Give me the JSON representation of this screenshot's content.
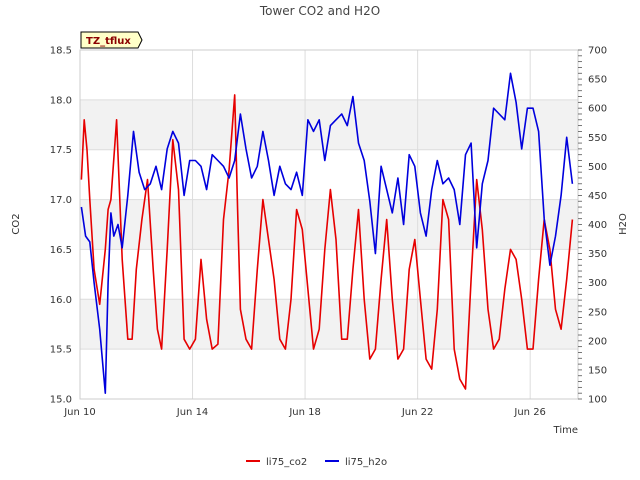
{
  "chart_data": {
    "type": "line",
    "title": "Tower CO2 and H2O",
    "badge": "TZ_tflux",
    "xlabel": "Time",
    "ylabel_left": "CO2",
    "ylabel_right": "H2O",
    "x_ticks": [
      "Jun 10",
      "Jun 14",
      "Jun 18",
      "Jun 22",
      "Jun 26"
    ],
    "x_tick_days": [
      10,
      14,
      18,
      22,
      26
    ],
    "xlim_days": [
      10,
      27.7
    ],
    "y_left_lim": [
      15.0,
      18.5
    ],
    "y_left_ticks": [
      "15.0",
      "15.5",
      "16.0",
      "16.5",
      "17.0",
      "17.5",
      "18.0",
      "18.5"
    ],
    "y_right_lim": [
      100,
      700
    ],
    "y_right_ticks": [
      "100",
      "150",
      "200",
      "250",
      "300",
      "350",
      "400",
      "450",
      "500",
      "550",
      "600",
      "650",
      "700"
    ],
    "grid": true,
    "legend_position": "bottom",
    "series": [
      {
        "name": "li75_co2",
        "axis": "left",
        "color": "#e60000",
        "x_days": [
          10.05,
          10.15,
          10.25,
          10.35,
          10.5,
          10.7,
          10.9,
          11.0,
          11.1,
          11.3,
          11.5,
          11.7,
          11.85,
          12.0,
          12.2,
          12.4,
          12.6,
          12.75,
          12.9,
          13.1,
          13.3,
          13.5,
          13.7,
          13.9,
          14.1,
          14.3,
          14.5,
          14.7,
          14.9,
          15.1,
          15.3,
          15.5,
          15.6,
          15.7,
          15.9,
          16.1,
          16.3,
          16.5,
          16.7,
          16.9,
          17.1,
          17.3,
          17.5,
          17.7,
          17.9,
          18.1,
          18.3,
          18.5,
          18.7,
          18.9,
          19.1,
          19.3,
          19.5,
          19.7,
          19.9,
          20.1,
          20.3,
          20.5,
          20.7,
          20.9,
          21.1,
          21.3,
          21.5,
          21.7,
          21.9,
          22.1,
          22.3,
          22.5,
          22.7,
          22.9,
          23.1,
          23.3,
          23.5,
          23.7,
          23.9,
          24.1,
          24.3,
          24.5,
          24.7,
          24.9,
          25.1,
          25.3,
          25.5,
          25.7,
          25.9,
          26.1,
          26.3,
          26.5,
          26.7,
          26.9,
          27.1,
          27.3,
          27.5
        ],
        "values": [
          17.2,
          17.8,
          17.5,
          17.0,
          16.3,
          15.95,
          16.5,
          16.9,
          17.0,
          17.8,
          16.4,
          15.6,
          15.6,
          16.3,
          16.8,
          17.2,
          16.3,
          15.7,
          15.5,
          16.5,
          17.6,
          17.1,
          15.6,
          15.5,
          15.6,
          16.4,
          15.8,
          15.5,
          15.55,
          16.8,
          17.3,
          18.05,
          16.9,
          15.9,
          15.6,
          15.5,
          16.3,
          17.0,
          16.6,
          16.2,
          15.6,
          15.5,
          16.0,
          16.9,
          16.7,
          16.1,
          15.5,
          15.7,
          16.5,
          17.1,
          16.6,
          15.6,
          15.6,
          16.3,
          16.9,
          16.0,
          15.4,
          15.5,
          16.2,
          16.8,
          16.0,
          15.4,
          15.5,
          16.3,
          16.6,
          16.0,
          15.4,
          15.3,
          15.9,
          17.0,
          16.8,
          15.5,
          15.2,
          15.1,
          16.2,
          17.2,
          16.7,
          15.9,
          15.5,
          15.6,
          16.1,
          16.5,
          16.4,
          16.0,
          15.5,
          15.5,
          16.2,
          16.8,
          16.5,
          15.9,
          15.7,
          16.2,
          16.8
        ]
      },
      {
        "name": "li75_h2o",
        "axis": "right",
        "color": "#0000dd",
        "x_days": [
          10.05,
          10.2,
          10.35,
          10.5,
          10.7,
          10.9,
          11.0,
          11.1,
          11.2,
          11.35,
          11.5,
          11.7,
          11.9,
          12.1,
          12.3,
          12.5,
          12.7,
          12.9,
          13.1,
          13.3,
          13.5,
          13.7,
          13.9,
          14.1,
          14.3,
          14.5,
          14.7,
          14.9,
          15.1,
          15.3,
          15.5,
          15.7,
          15.9,
          16.1,
          16.3,
          16.5,
          16.7,
          16.9,
          17.1,
          17.3,
          17.5,
          17.7,
          17.9,
          18.1,
          18.3,
          18.5,
          18.7,
          18.9,
          19.1,
          19.3,
          19.5,
          19.7,
          19.9,
          20.1,
          20.3,
          20.5,
          20.7,
          20.9,
          21.1,
          21.3,
          21.5,
          21.7,
          21.9,
          22.1,
          22.3,
          22.5,
          22.7,
          22.9,
          23.1,
          23.3,
          23.5,
          23.7,
          23.9,
          24.1,
          24.3,
          24.5,
          24.7,
          24.9,
          25.1,
          25.3,
          25.5,
          25.7,
          25.9,
          26.1,
          26.3,
          26.5,
          26.7,
          26.9,
          27.1,
          27.3,
          27.5
        ],
        "values": [
          430,
          380,
          370,
          300,
          220,
          110,
          300,
          420,
          380,
          400,
          360,
          450,
          560,
          490,
          460,
          470,
          500,
          460,
          530,
          560,
          540,
          450,
          510,
          510,
          500,
          460,
          520,
          510,
          500,
          480,
          510,
          590,
          530,
          480,
          500,
          560,
          510,
          450,
          500,
          470,
          460,
          490,
          450,
          580,
          560,
          580,
          510,
          570,
          580,
          590,
          570,
          620,
          540,
          510,
          440,
          350,
          500,
          460,
          420,
          480,
          400,
          520,
          500,
          420,
          380,
          460,
          510,
          470,
          480,
          460,
          400,
          520,
          540,
          360,
          470,
          510,
          600,
          590,
          580,
          660,
          610,
          530,
          600,
          600,
          560,
          410,
          330,
          380,
          450,
          550,
          470
        ]
      }
    ]
  }
}
